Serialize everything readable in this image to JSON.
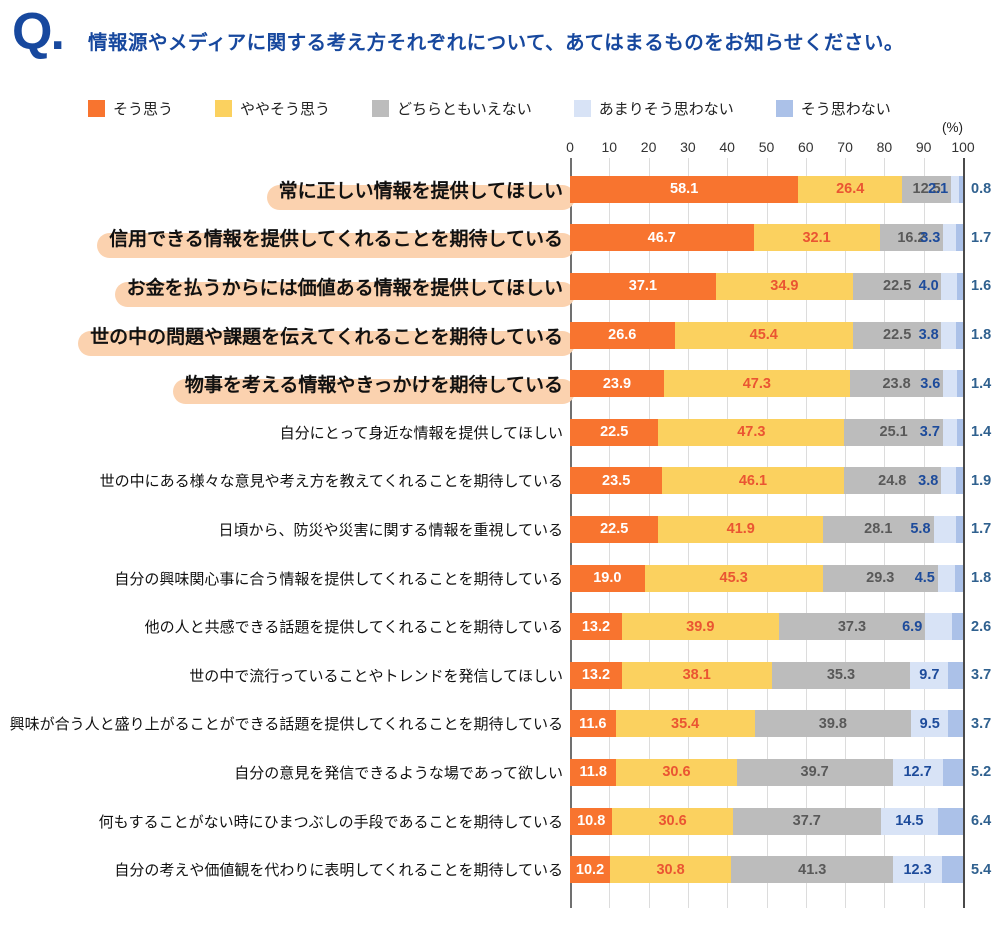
{
  "header": {
    "q_mark": "Q.",
    "title": "情報源やメディアに関する考え方それぞれについて、あてはまるものをお知らせください。",
    "title_color": "#17489E"
  },
  "chart_data": {
    "type": "bar",
    "orientation": "horizontal-stacked",
    "unit_label": "(%)",
    "axis": {
      "min": 0,
      "max": 100,
      "step": 10,
      "ticks": [
        0,
        10,
        20,
        30,
        40,
        50,
        60,
        70,
        80,
        90,
        100
      ]
    },
    "legend_position": "top",
    "grid": true,
    "legend": [
      {
        "label": "そう思う",
        "color": "#F8742F"
      },
      {
        "label": "ややそう思う",
        "color": "#FBD15F"
      },
      {
        "label": "どちらともいえない",
        "color": "#BCBCBC"
      },
      {
        "label": "あまりそう思わない",
        "color": "#D8E3F6"
      },
      {
        "label": "そう思わない",
        "color": "#ABC1E8"
      }
    ],
    "value_text_colors": [
      "#FFFFFF",
      "#EA5532",
      "#595959",
      "#1D4B9B",
      "#30618F"
    ],
    "highlight_pill_color": "#FBD2AF",
    "categories": [
      "常に正しい情報を提供してほしい",
      "信用できる情報を提供してくれることを期待している",
      "お金を払うからには価値ある情報を提供してほしい",
      "世の中の問題や課題を伝えてくれることを期待している",
      "物事を考える情報やきっかけを期待している",
      "自分にとって身近な情報を提供してほしい",
      "世の中にある様々な意見や考え方を教えてくれることを期待している",
      "日頃から、防災や災害に関する情報を重視している",
      "自分の興味関心事に合う情報を提供してくれることを期待している",
      "他の人と共感できる話題を提供してくれることを期待している",
      "世の中で流行っていることやトレンドを発信してほしい",
      "興味が合う人と盛り上がることができる話題を提供してくれることを期待している",
      "自分の意見を発信できるような場であって欲しい",
      "何もすることがない時にひまつぶしの手段であることを期待している",
      "自分の考えや価値観を代わりに表明してくれることを期待している"
    ],
    "highlighted": [
      true,
      true,
      true,
      true,
      true,
      false,
      false,
      false,
      false,
      false,
      false,
      false,
      false,
      false,
      false
    ],
    "series": [
      {
        "name": "そう思う",
        "values": [
          58.1,
          46.7,
          37.1,
          26.6,
          23.9,
          22.5,
          23.5,
          22.5,
          19.0,
          13.2,
          13.2,
          11.6,
          11.8,
          10.8,
          10.2
        ]
      },
      {
        "name": "ややそう思う",
        "values": [
          26.4,
          32.1,
          34.9,
          45.4,
          47.3,
          47.3,
          46.1,
          41.9,
          45.3,
          39.9,
          38.1,
          35.4,
          30.6,
          30.6,
          30.8
        ]
      },
      {
        "name": "どちらともいえない",
        "values": [
          12.5,
          16.2,
          22.5,
          22.5,
          23.8,
          25.1,
          24.8,
          28.1,
          29.3,
          37.3,
          35.3,
          39.8,
          39.7,
          37.7,
          41.3
        ]
      },
      {
        "name": "あまりそう思わない",
        "values": [
          2.1,
          3.3,
          4.0,
          3.8,
          3.6,
          3.7,
          3.8,
          5.8,
          4.5,
          6.9,
          9.7,
          9.5,
          12.7,
          14.5,
          12.3
        ]
      },
      {
        "name": "そう思わない",
        "values": [
          0.8,
          1.7,
          1.6,
          1.8,
          1.4,
          1.4,
          1.9,
          1.7,
          1.8,
          2.6,
          3.7,
          3.7,
          5.2,
          6.4,
          5.4
        ]
      }
    ]
  }
}
